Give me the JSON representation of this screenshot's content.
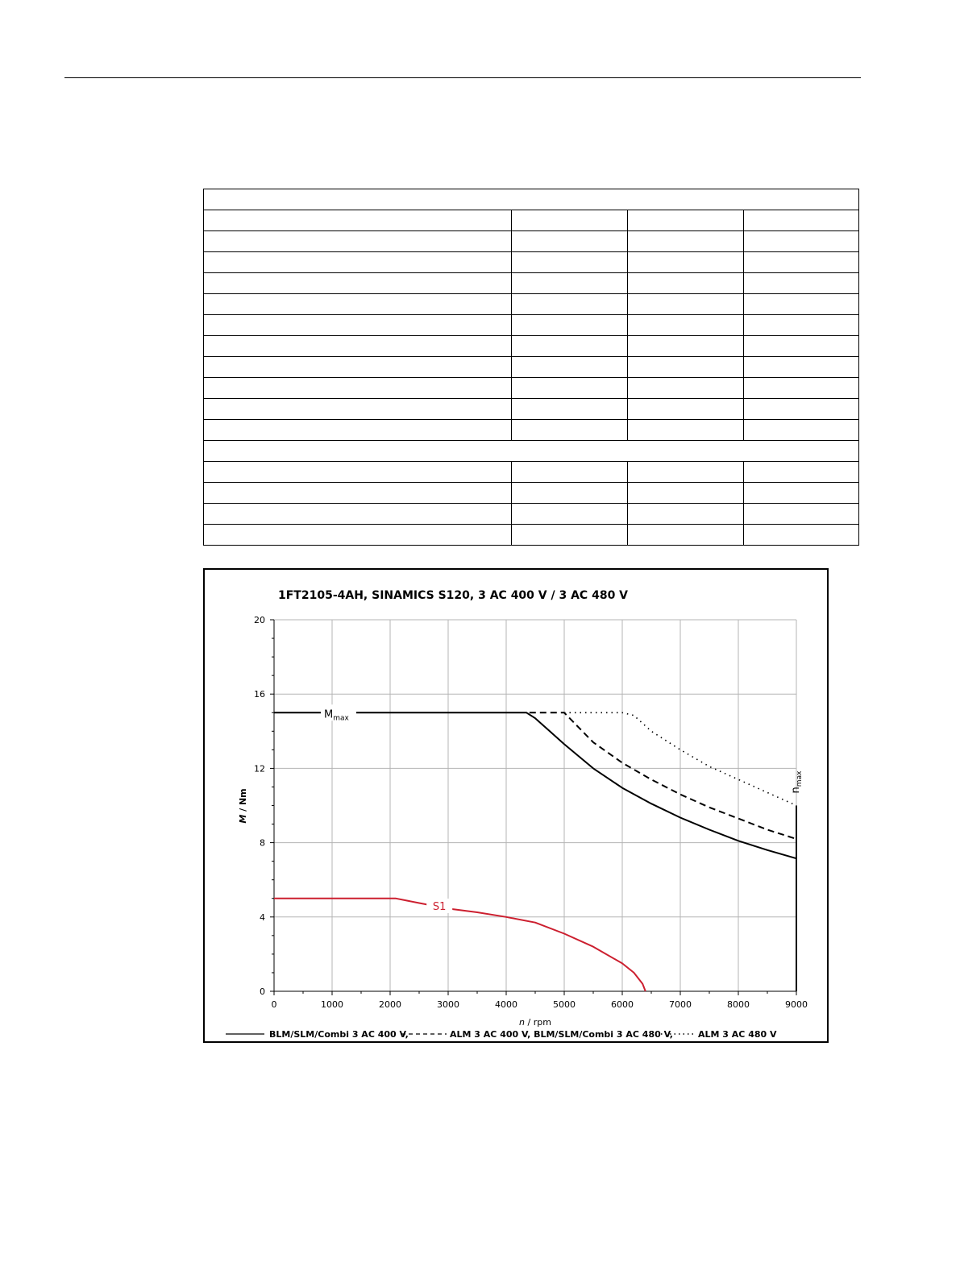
{
  "table": {
    "rows": [
      {
        "cells": [
          ""
        ],
        "span": true
      },
      {
        "cells": [
          "",
          "",
          "",
          ""
        ]
      },
      {
        "cells": [
          "",
          "",
          "",
          ""
        ]
      },
      {
        "cells": [
          "",
          "",
          "",
          ""
        ]
      },
      {
        "cells": [
          "",
          "",
          "",
          ""
        ]
      },
      {
        "cells": [
          "",
          "",
          "",
          ""
        ]
      },
      {
        "cells": [
          "",
          "",
          "",
          ""
        ]
      },
      {
        "cells": [
          "",
          "",
          "",
          ""
        ]
      },
      {
        "cells": [
          "",
          "",
          "",
          ""
        ]
      },
      {
        "cells": [
          "",
          "",
          "",
          ""
        ]
      },
      {
        "cells": [
          "",
          "",
          "",
          ""
        ]
      },
      {
        "cells": [
          "",
          "",
          "",
          ""
        ]
      },
      {
        "cells": [
          ""
        ],
        "span": true
      },
      {
        "cells": [
          "",
          "",
          "",
          ""
        ]
      },
      {
        "cells": [
          "",
          "",
          "",
          ""
        ]
      },
      {
        "cells": [
          "",
          "",
          "",
          ""
        ]
      },
      {
        "cells": [
          "",
          "",
          "",
          ""
        ]
      }
    ]
  },
  "chart_data": {
    "type": "line",
    "title": "1FT2105-4AH,  SINAMICS S120,  3 AC 400 V / 3 AC 480 V",
    "xlabel_italic": "n",
    "xlabel_unit": " / rpm",
    "ylabel_italic": "M",
    "ylabel_unit": " / Nm",
    "xlim": [
      0,
      9000
    ],
    "ylim": [
      0,
      20
    ],
    "xticks": [
      0,
      1000,
      2000,
      3000,
      4000,
      5000,
      6000,
      7000,
      8000,
      9000
    ],
    "yticks": [
      0,
      4,
      8,
      12,
      16,
      20
    ],
    "grid": true,
    "legend_position": "bottom",
    "colors": {
      "black": "#000000",
      "red": "#cc1f2f",
      "grid": "#b5b5b5"
    },
    "series": [
      {
        "name": "BLM/SLM/Combi 3 AC 400 V,",
        "style": "solid",
        "color": "#000000",
        "points": [
          [
            0,
            15
          ],
          [
            4350,
            15
          ],
          [
            4500,
            14.7
          ],
          [
            4750,
            14.0
          ],
          [
            5000,
            13.3
          ],
          [
            5500,
            12.0
          ],
          [
            6000,
            10.95
          ],
          [
            6500,
            10.1
          ],
          [
            7000,
            9.35
          ],
          [
            7500,
            8.7
          ],
          [
            8000,
            8.1
          ],
          [
            8500,
            7.6
          ],
          [
            9000,
            7.15
          ]
        ]
      },
      {
        "name": "ALM 3 AC 400 V, BLM/SLM/Combi 3 AC 480 V,",
        "style": "dashed",
        "color": "#000000",
        "points": [
          [
            4400,
            15
          ],
          [
            5000,
            15
          ],
          [
            5250,
            14.2
          ],
          [
            5500,
            13.4
          ],
          [
            6000,
            12.3
          ],
          [
            6500,
            11.4
          ],
          [
            7000,
            10.6
          ],
          [
            7500,
            9.9
          ],
          [
            8000,
            9.3
          ],
          [
            8500,
            8.7
          ],
          [
            9000,
            8.2
          ]
        ]
      },
      {
        "name": "ALM 3 AC 480 V",
        "style": "dotted",
        "color": "#000000",
        "points": [
          [
            5000,
            15
          ],
          [
            6000,
            15
          ],
          [
            6200,
            14.85
          ],
          [
            6500,
            14.0
          ],
          [
            7000,
            13.0
          ],
          [
            7500,
            12.1
          ],
          [
            8000,
            11.4
          ],
          [
            8500,
            10.7
          ],
          [
            9000,
            10.0
          ]
        ]
      },
      {
        "name": "S1",
        "style": "solid",
        "color": "#cc1f2f",
        "points": [
          [
            0,
            5
          ],
          [
            2100,
            5
          ],
          [
            2500,
            4.75
          ],
          [
            3000,
            4.45
          ],
          [
            3500,
            4.25
          ],
          [
            4000,
            4.0
          ],
          [
            4500,
            3.7
          ],
          [
            5000,
            3.1
          ],
          [
            5500,
            2.4
          ],
          [
            6000,
            1.5
          ],
          [
            6200,
            1.0
          ],
          [
            6350,
            0.4
          ],
          [
            6400,
            0
          ]
        ]
      },
      {
        "name": "nmax",
        "style": "solid",
        "color": "#000000",
        "points": [
          [
            9000,
            0
          ],
          [
            9000,
            10
          ]
        ]
      }
    ],
    "annotations": [
      {
        "id": "mmax",
        "main": "M",
        "sub": "max",
        "x": 1000,
        "y": 15
      },
      {
        "id": "s1",
        "text": "S1",
        "x": 2850,
        "y": 4.6
      },
      {
        "id": "nmax",
        "main": "n",
        "sub": "max",
        "x": 9000,
        "y": 11
      }
    ],
    "legend": [
      {
        "label": "BLM/SLM/Combi 3 AC 400 V,",
        "style": "solid"
      },
      {
        "label": "ALM 3 AC 400 V, BLM/SLM/Combi 3 AC 480 V,",
        "style": "dashed"
      },
      {
        "label": "ALM 3 AC 480 V",
        "style": "dotted"
      }
    ]
  }
}
